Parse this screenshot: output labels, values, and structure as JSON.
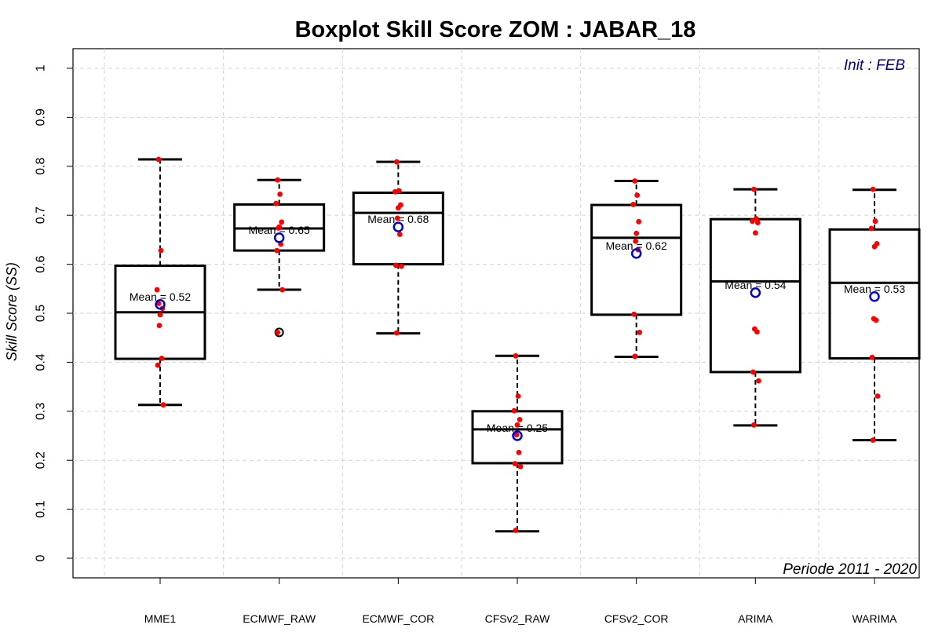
{
  "chart_data": {
    "type": "boxplot",
    "title": "Boxplot Skill Score ZOM : JABAR_18",
    "ylabel": "Skill Score (SS)",
    "xlabel": "",
    "ylim": [
      -0.04,
      1.04
    ],
    "yticks": [
      "0",
      "0.1",
      "0.2",
      "0.3",
      "0.4",
      "0.5",
      "0.6",
      "0.7",
      "0.8",
      "0.9",
      "1"
    ],
    "grid": true,
    "annotation_top_right": "Init : FEB",
    "annotation_bottom_right": "Periode 2011 - 2020",
    "colors": {
      "points": "#ff0000",
      "mean_marker": "#0000cc",
      "init_text": "#000080",
      "grid": "#d3d3d3",
      "box": "#000000"
    },
    "categories": [
      "MME1",
      "ECMWF_RAW",
      "ECMWF_COR",
      "CFSv2_RAW",
      "CFSv2_COR",
      "ARIMA",
      "WARIMA"
    ],
    "boxes": [
      {
        "name": "MME1",
        "whisker_low": 0.313,
        "q1": 0.407,
        "median": 0.502,
        "q3": 0.597,
        "whisker_high": 0.814,
        "mean": 0.518,
        "mean_label": "Mean = 0.52",
        "outliers": [],
        "points": [
          0.814,
          0.628,
          0.548,
          0.51,
          0.497,
          0.475,
          0.408,
          0.394,
          0.313,
          0.52
        ]
      },
      {
        "name": "ECMWF_RAW",
        "whisker_low": 0.548,
        "q1": 0.628,
        "median": 0.673,
        "q3": 0.722,
        "whisker_high": 0.772,
        "mean": 0.654,
        "mean_label": "Mean = 0.65",
        "outliers": [
          0.461
        ],
        "points": [
          0.772,
          0.743,
          0.724,
          0.686,
          0.676,
          0.674,
          0.641,
          0.628,
          0.548,
          0.461
        ]
      },
      {
        "name": "ECMWF_COR",
        "whisker_low": 0.459,
        "q1": 0.6,
        "median": 0.705,
        "q3": 0.746,
        "whisker_high": 0.809,
        "mean": 0.676,
        "mean_label": "Mean = 0.68",
        "outliers": [],
        "points": [
          0.809,
          0.75,
          0.748,
          0.721,
          0.715,
          0.694,
          0.661,
          0.598,
          0.596,
          0.46
        ]
      },
      {
        "name": "CFSv2_RAW",
        "whisker_low": 0.055,
        "q1": 0.194,
        "median": 0.263,
        "q3": 0.3,
        "whisker_high": 0.413,
        "mean": 0.25,
        "mean_label": "Mean = 0.25",
        "outliers": [],
        "points": [
          0.413,
          0.331,
          0.301,
          0.283,
          0.272,
          0.252,
          0.216,
          0.193,
          0.187,
          0.057
        ]
      },
      {
        "name": "CFSv2_COR",
        "whisker_low": 0.411,
        "q1": 0.497,
        "median": 0.654,
        "q3": 0.721,
        "whisker_high": 0.77,
        "mean": 0.622,
        "mean_label": "Mean = 0.62",
        "outliers": [],
        "points": [
          0.77,
          0.741,
          0.722,
          0.687,
          0.663,
          0.647,
          0.63,
          0.498,
          0.461,
          0.412
        ]
      },
      {
        "name": "ARIMA",
        "whisker_low": 0.271,
        "q1": 0.38,
        "median": 0.565,
        "q3": 0.692,
        "whisker_high": 0.753,
        "mean": 0.542,
        "mean_label": "Mean = 0.54",
        "outliers": [],
        "points": [
          0.753,
          0.693,
          0.688,
          0.685,
          0.664,
          0.468,
          0.462,
          0.38,
          0.362,
          0.272
        ]
      },
      {
        "name": "WARIMA",
        "whisker_low": 0.241,
        "q1": 0.408,
        "median": 0.562,
        "q3": 0.671,
        "whisker_high": 0.752,
        "mean": 0.534,
        "mean_label": "Mean = 0.53",
        "outliers": [],
        "points": [
          0.753,
          0.688,
          0.673,
          0.642,
          0.636,
          0.489,
          0.486,
          0.41,
          0.331,
          0.241
        ]
      }
    ]
  }
}
